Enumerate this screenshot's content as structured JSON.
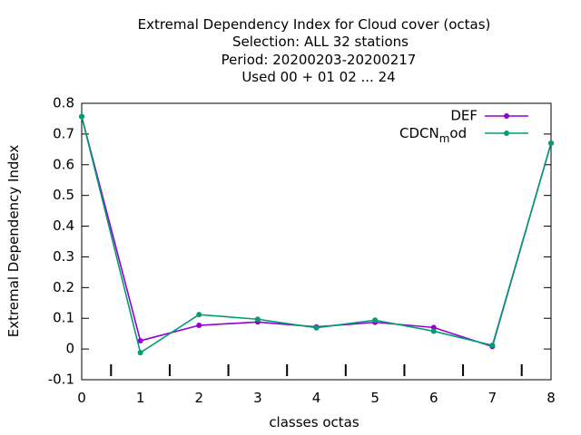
{
  "chart_data": {
    "type": "line",
    "title_lines": [
      "Extremal Dependency Index  for Cloud cover (octas)",
      "Selection: ALL     32 stations",
      "Period: 20200203-20200217",
      "Used  00 + 01 02 ... 24"
    ],
    "xlabel": "classes octas",
    "ylabel": "Extremal Dependency Index",
    "x": [
      0,
      1,
      2,
      3,
      4,
      5,
      6,
      7,
      8
    ],
    "xlim": [
      0,
      8
    ],
    "ylim": [
      -0.1,
      0.8
    ],
    "yticks": [
      "-0.1",
      "0",
      "0.1",
      "0.2",
      "0.3",
      "0.4",
      "0.5",
      "0.6",
      "0.7",
      "0.8"
    ],
    "xticks": [
      "0",
      "1",
      "2",
      "3",
      "4",
      "5",
      "6",
      "7",
      "8"
    ],
    "grid": false,
    "legend_position": "top-right",
    "series": [
      {
        "name": "DEF",
        "color": "#9400d3",
        "values": [
          0.757,
          0.027,
          0.077,
          0.088,
          0.072,
          0.087,
          0.07,
          0.008,
          0.67
        ]
      },
      {
        "name": "CDCN_mod",
        "legend_main": "CDCN",
        "legend_sub": "m",
        "legend_rest": "od",
        "color": "#009e73",
        "values": [
          0.757,
          -0.012,
          0.112,
          0.097,
          0.069,
          0.094,
          0.058,
          0.012,
          0.67
        ]
      }
    ]
  }
}
